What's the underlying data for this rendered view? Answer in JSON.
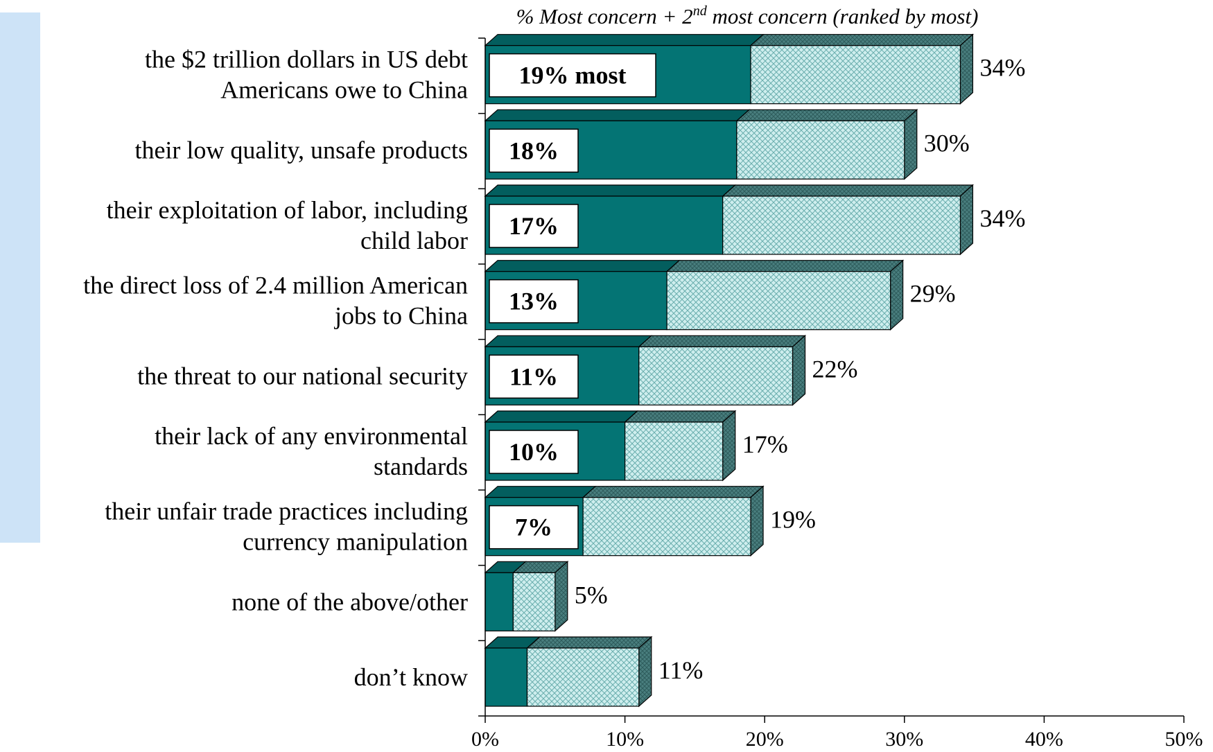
{
  "colors": {
    "most": "#047474",
    "most_top": "#035e5e",
    "second": "#cfeeee",
    "second_hatch": "#6aaeae",
    "side": "#4a7f7f",
    "accent_panel": "#cde3f7"
  },
  "chart_data": {
    "type": "bar",
    "orientation": "horizontal",
    "stacked": true,
    "title_parts": [
      "% Most concern + 2",
      "nd",
      " most concern (ranked by most)"
    ],
    "categories": [
      [
        "the $2 trillion dollars in US debt",
        "Americans owe to China"
      ],
      [
        "their low quality, unsafe products"
      ],
      [
        "their exploitation of labor, including",
        "child labor"
      ],
      [
        "the direct loss of 2.4 million American",
        "jobs to China"
      ],
      [
        "the threat to our national security"
      ],
      [
        "their lack of any environmental",
        "standards"
      ],
      [
        "their unfair trade practices including",
        "currency manipulation"
      ],
      [
        "none of the above/other"
      ],
      [
        "don’t know"
      ]
    ],
    "series": [
      {
        "values": [
          19,
          18,
          17,
          13,
          11,
          10,
          7,
          2,
          3
        ]
      },
      {
        "values": [
          15,
          12,
          17,
          16,
          11,
          7,
          12,
          3,
          8
        ]
      }
    ],
    "totals": [
      34,
      30,
      34,
      29,
      22,
      17,
      19,
      5,
      11
    ],
    "total_labels": [
      "34%",
      "30%",
      "34%",
      "29%",
      "22%",
      "17%",
      "19%",
      "5%",
      "11%"
    ],
    "most_labels": [
      "19% most",
      "18%",
      "17%",
      "13%",
      "11%",
      "10%",
      "7%",
      "",
      ""
    ],
    "x_ticks": [
      "0%",
      "10%",
      "20%",
      "30%",
      "40%",
      "50%"
    ],
    "xlim": [
      0,
      50
    ]
  }
}
